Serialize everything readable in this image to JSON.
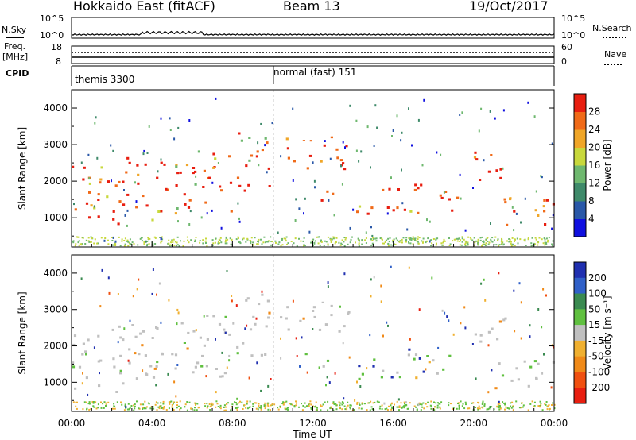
{
  "header": {
    "title": "Hokkaido East (fitACF)",
    "beam": "Beam 13",
    "date": "19/Oct/2017"
  },
  "top_panels": {
    "nsky_label": "N.Sky",
    "nsky_ticks": [
      "10^5",
      "10^0"
    ],
    "nsearch_label": "N.Search",
    "nsearch_ticks": [
      "10^5",
      "10^0"
    ],
    "freq_label": "Freq.",
    "freq_unit": "[MHz]",
    "freq_ticks": [
      "18",
      "8"
    ],
    "nave_label": "Nave",
    "nave_ticks": [
      "60",
      "0"
    ],
    "cpid_label": "CPID",
    "cpid_segments": [
      "themis 3300",
      "normal (fast) 151"
    ],
    "cpid_change_time": "10:00"
  },
  "chart_data": [
    {
      "type": "heatmap",
      "name": "power",
      "ylabel": "Slant Range [km]",
      "yticks": [
        1000,
        2000,
        3000,
        4000
      ],
      "ylim": [
        200,
        4500
      ],
      "xlim": [
        "00:00",
        "24:00"
      ],
      "colorbar": {
        "label": "Power [dB]",
        "ticks": [
          4,
          8,
          12,
          16,
          20,
          24,
          28
        ],
        "colors": [
          "#1010e0",
          "#2a58a8",
          "#3f8a6a",
          "#6fb86f",
          "#c8d83c",
          "#f0a628",
          "#f06a18",
          "#e81e10"
        ]
      }
    },
    {
      "type": "heatmap",
      "name": "velocity",
      "ylabel": "Slant Range [km]",
      "yticks": [
        1000,
        2000,
        3000,
        4000
      ],
      "ylim": [
        200,
        4500
      ],
      "xlim": [
        "00:00",
        "24:00"
      ],
      "colorbar": {
        "label": "Velocity [m s⁻¹]",
        "ticks": [
          200,
          100,
          50,
          15,
          -15,
          -50,
          -100,
          -200
        ],
        "colors": [
          "#2030b0",
          "#3060c8",
          "#3a8a50",
          "#60c040",
          "#c0c0c0",
          "#f0b030",
          "#f08a18",
          "#f05010",
          "#e81e10"
        ]
      }
    }
  ],
  "x_axis": {
    "ticks": [
      "00:00",
      "04:00",
      "08:00",
      "12:00",
      "16:00",
      "20:00",
      "00:00"
    ],
    "label": "Time UT"
  }
}
